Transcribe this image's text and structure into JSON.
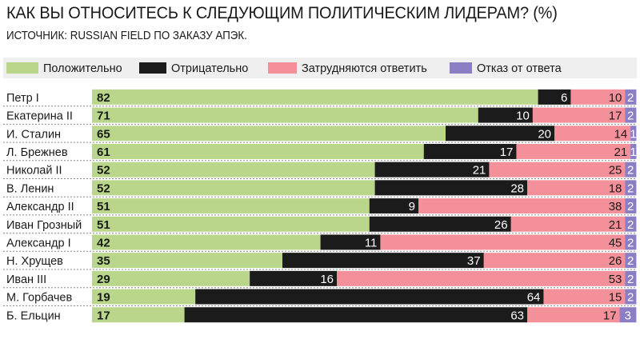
{
  "chart_data": {
    "type": "bar",
    "orientation": "horizontal",
    "stacked": true,
    "title": "КАК ВЫ ОТНОСИТЕСЬ К СЛЕДУЮЩИМ ПОЛИТИЧЕСКИМ ЛИДЕРАМ? (%)",
    "subtitle": "ИСТОЧНИК: RUSSIAN FIELD ПО ЗАКАЗУ АПЭК.",
    "legend_position": "top",
    "xlim": [
      0,
      100
    ],
    "categories": [
      "Петр I",
      "Екатерина II",
      "И. Сталин",
      "Л. Брежнев",
      "Николай II",
      "В. Ленин",
      "Александр II",
      "Иван Грозный",
      "Александр I",
      "Н. Хрущев",
      "Иван III",
      "М. Горбачев",
      "Б. Ельцин"
    ],
    "series": [
      {
        "name": "Положительно",
        "color": "#b9d68b",
        "text_color": "#1a1a1a",
        "values": [
          82,
          71,
          65,
          61,
          52,
          52,
          51,
          51,
          42,
          35,
          29,
          19,
          17
        ]
      },
      {
        "name": "Отрицательно",
        "color": "#1b1b1b",
        "text_color": "#ffffff",
        "values": [
          6,
          10,
          20,
          17,
          21,
          28,
          9,
          26,
          11,
          37,
          16,
          64,
          63
        ]
      },
      {
        "name": "Затрудняются ответить",
        "color": "#f3909a",
        "text_color": "#1a1a1a",
        "values": [
          10,
          17,
          14,
          21,
          25,
          18,
          38,
          21,
          45,
          26,
          53,
          15,
          17
        ]
      },
      {
        "name": "Отказ от ответа",
        "color": "#8c7ec4",
        "text_color": "#ffffff",
        "values": [
          2,
          2,
          1,
          1,
          2,
          2,
          2,
          2,
          2,
          2,
          2,
          2,
          3
        ]
      }
    ]
  }
}
